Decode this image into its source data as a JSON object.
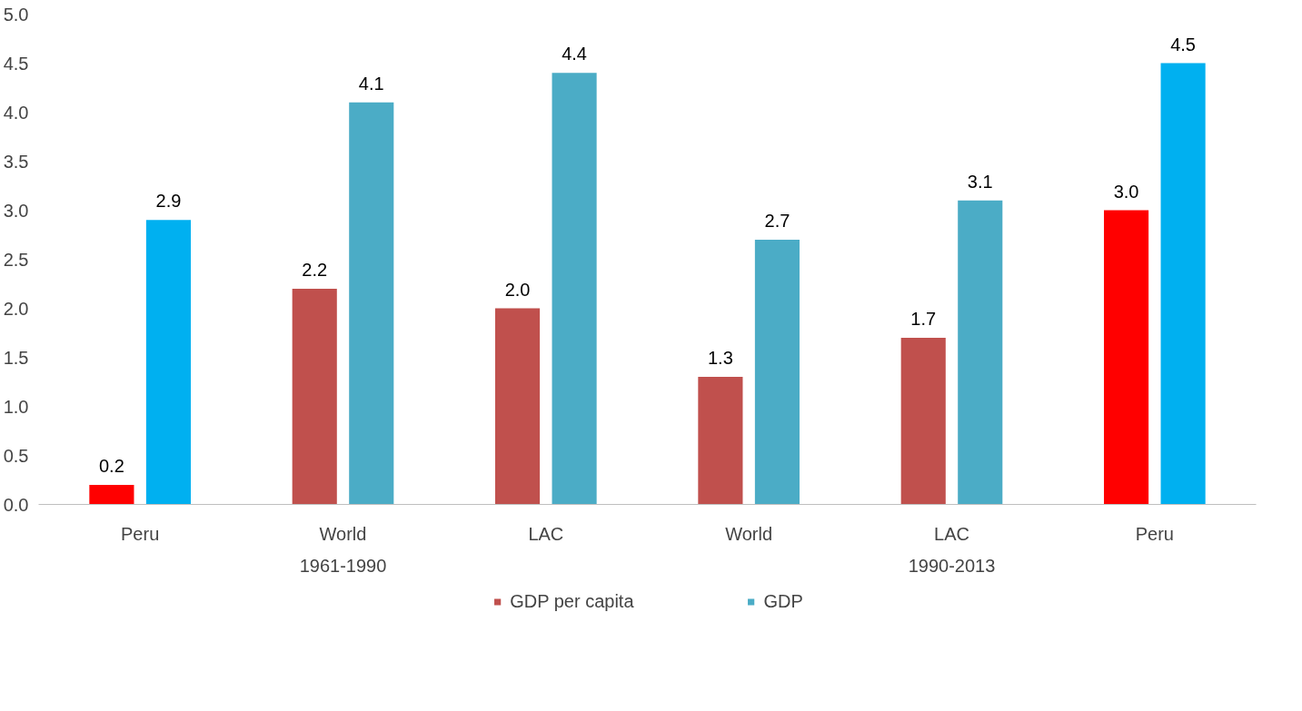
{
  "chart_data": {
    "type": "bar",
    "categories": [
      "Peru",
      "World",
      "LAC",
      "World",
      "LAC",
      "Peru"
    ],
    "series": [
      {
        "name": "GDP per capita",
        "color": "#c0504d",
        "colors": [
          "#ff0000",
          "#c0504d",
          "#c0504d",
          "#c0504d",
          "#c0504d",
          "#ff0000"
        ],
        "values": [
          0.2,
          2.2,
          2.0,
          1.3,
          1.7,
          3.0
        ],
        "value_labels": [
          "0.2",
          "2.2",
          "2.0",
          "1.3",
          "1.7",
          "3.0"
        ]
      },
      {
        "name": "GDP",
        "color": "#4bacc6",
        "colors": [
          "#00b0f0",
          "#4bacc6",
          "#4bacc6",
          "#4bacc6",
          "#4bacc6",
          "#00b0f0"
        ],
        "values": [
          2.9,
          4.1,
          4.4,
          2.7,
          3.1,
          4.5
        ],
        "value_labels": [
          "2.9",
          "4.1",
          "4.4",
          "2.7",
          "3.1",
          "4.5"
        ]
      }
    ],
    "annotations": [
      "1961-1990",
      "1990-2013"
    ],
    "ylim": [
      0,
      5
    ],
    "yticks": [
      {
        "value": 0,
        "label": "0.0"
      },
      {
        "value": 0.5,
        "label": "0.5"
      },
      {
        "value": 1,
        "label": "1.0"
      },
      {
        "value": 1.5,
        "label": "1.5"
      },
      {
        "value": 2,
        "label": "2.0"
      },
      {
        "value": 2.5,
        "label": "2.5"
      },
      {
        "value": 3,
        "label": "3.0"
      },
      {
        "value": 3.5,
        "label": "3.5"
      },
      {
        "value": 4,
        "label": "4.0"
      },
      {
        "value": 4.5,
        "label": "4.5"
      },
      {
        "value": 5,
        "label": "5.0"
      }
    ],
    "grid": false,
    "legend": "bottom"
  }
}
